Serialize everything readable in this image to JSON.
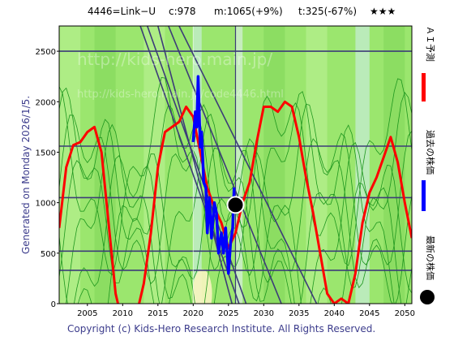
{
  "header": {
    "code_name": "4446=Link−U",
    "current": "c:978",
    "max": "m:1065(+9%)",
    "target": "t:325(-67%)",
    "rating": "★★★"
  },
  "side_labels": {
    "ai_forecast": "ＡＩ予測",
    "past_price": "過去の株価",
    "latest_price": "最新の株価"
  },
  "generated_text": "Generated on Monday 2026/1/5.",
  "copyright": "Copyright (c) Kids-Hero Research Institute. All Rights Reserved.",
  "watermark": {
    "line1": "http://kids-hero.main.jp/",
    "line2": "http://kids-hero.main.jp/code4446.html"
  },
  "colors": {
    "background_green": "#9be66e",
    "forecast_red": "#ff0000",
    "past_blue": "#0000ff",
    "thin_green": "#1e961e",
    "grid_navy": "#3c3c78",
    "marker": "#000000"
  },
  "chart_data": {
    "type": "line",
    "xlim": [
      2001,
      2051
    ],
    "ylim": [
      0,
      2750
    ],
    "x_ticks": [
      2005,
      2010,
      2015,
      2020,
      2025,
      2030,
      2035,
      2040,
      2045,
      2050
    ],
    "y_ticks": [
      0,
      500,
      1000,
      1500,
      2000,
      2500
    ],
    "horizontal_levels": [
      330,
      520,
      1050,
      1560,
      2500
    ],
    "current_marker": {
      "x": 2026.0,
      "y": 978
    },
    "series": [
      {
        "role": "forecast",
        "color": "#ff0000",
        "x": [
          2001,
          2002,
          2003,
          2004,
          2005,
          2006,
          2007,
          2008,
          2009,
          2010,
          2011,
          2012,
          2013,
          2014,
          2015,
          2016,
          2017,
          2018,
          2019,
          2020,
          2021,
          2022,
          2023,
          2024,
          2025,
          2026,
          2027,
          2028,
          2029,
          2030,
          2031,
          2032,
          2033,
          2034,
          2035,
          2036,
          2037,
          2038,
          2039,
          2040,
          2041,
          2042,
          2043,
          2044,
          2045,
          2046,
          2047,
          2048,
          2049,
          2050,
          2051
        ],
        "y": [
          750,
          1350,
          1570,
          1600,
          1700,
          1750,
          1500,
          800,
          100,
          -200,
          -300,
          -100,
          200,
          700,
          1350,
          1700,
          1750,
          1800,
          1950,
          1850,
          1500,
          1150,
          950,
          800,
          550,
          700,
          1000,
          1200,
          1600,
          1950,
          1950,
          1900,
          2000,
          1950,
          1650,
          1250,
          900,
          500,
          100,
          0,
          50,
          0,
          300,
          800,
          1100,
          1250,
          1450,
          1650,
          1400,
          1000,
          650
        ]
      },
      {
        "role": "past",
        "color": "#0000ff",
        "x": [
          2020.0,
          2020.3,
          2020.5,
          2020.7,
          2021.0,
          2021.2,
          2021.5,
          2021.8,
          2022.0,
          2022.3,
          2022.6,
          2023.0,
          2023.3,
          2023.6,
          2024.0,
          2024.3,
          2024.6,
          2025.0,
          2025.3,
          2025.6,
          2025.8
        ],
        "y": [
          1600,
          1900,
          1750,
          2250,
          1550,
          1700,
          1200,
          1150,
          700,
          1050,
          650,
          1000,
          900,
          500,
          700,
          500,
          750,
          300,
          600,
          750,
          1150
        ]
      }
    ]
  }
}
